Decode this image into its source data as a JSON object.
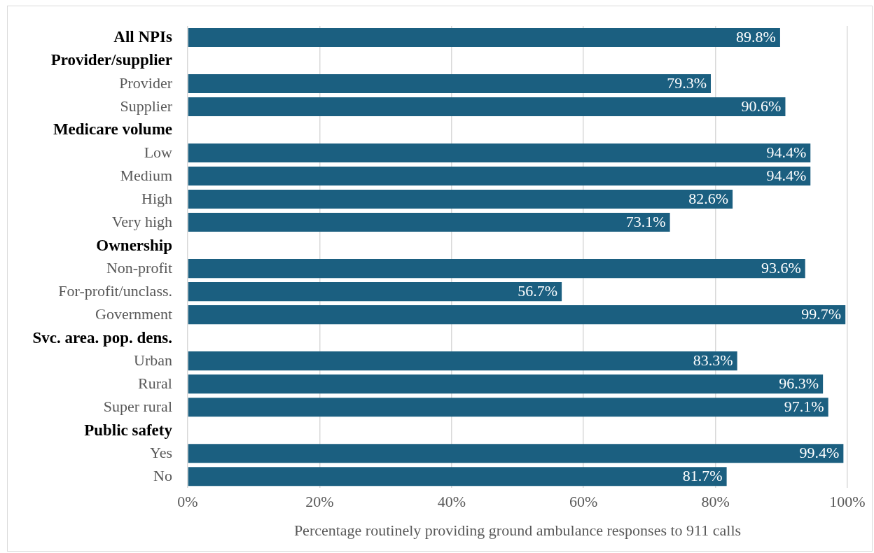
{
  "chart_data": {
    "type": "bar",
    "orientation": "horizontal",
    "xlabel": "Percentage routinely providing ground ambulance responses to 911 calls",
    "categories": [
      "All NPIs",
      "Provider/supplier",
      "Provider",
      "Supplier",
      "Medicare volume",
      "Low",
      "Medium",
      "High",
      "Very high",
      "Ownership",
      "Non-profit",
      "For-profit/unclass.",
      "Government",
      "Svc. area. pop. dens.",
      "Urban",
      "Rural",
      "Super rural",
      "Public safety",
      "Yes",
      "No"
    ],
    "values": [
      89.8,
      null,
      79.3,
      90.6,
      null,
      94.4,
      94.4,
      82.6,
      73.1,
      null,
      93.6,
      56.7,
      99.7,
      null,
      83.3,
      96.3,
      97.1,
      null,
      99.4,
      81.7
    ],
    "value_labels": [
      "89.8%",
      null,
      "79.3%",
      "90.6%",
      null,
      "94.4%",
      "94.4%",
      "82.6%",
      "73.1%",
      null,
      "93.6%",
      "56.7%",
      "99.7%",
      null,
      "83.3%",
      "96.3%",
      "97.1%",
      null,
      "99.4%",
      "81.7%"
    ],
    "color": "#1b5f80",
    "xlim": [
      0,
      100
    ],
    "xticks": [
      {
        "value": 0,
        "label": "0%"
      },
      {
        "value": 20,
        "label": "20%"
      },
      {
        "value": 40,
        "label": "40%"
      },
      {
        "value": 60,
        "label": "60%"
      },
      {
        "value": 80,
        "label": "80%"
      },
      {
        "value": 100,
        "label": "100%"
      }
    ],
    "grid": "x",
    "legend": false
  }
}
